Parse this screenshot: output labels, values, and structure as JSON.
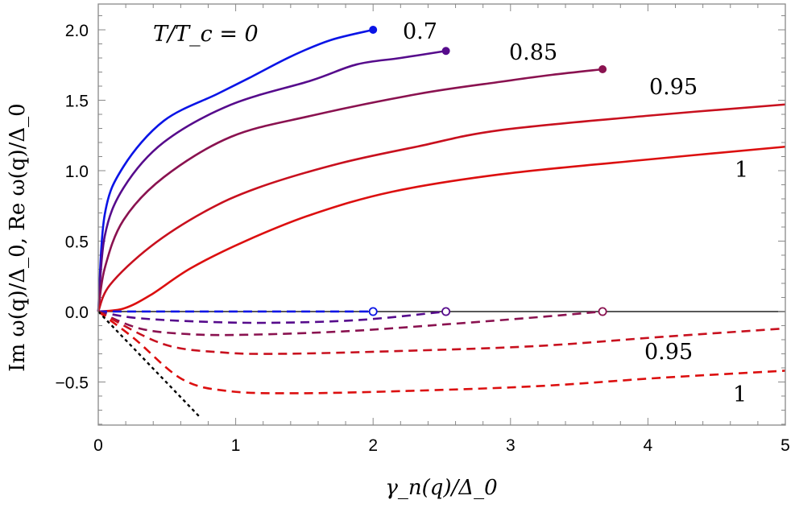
{
  "chart_data": {
    "type": "line",
    "xlabel": "γ_n(q)/Δ_0",
    "ylabel": "Im ω(q)/Δ_0,   Re ω(q)/Δ_0",
    "xlim": [
      0,
      5
    ],
    "ylim": [
      -0.806,
      2.183
    ],
    "x_ticks": [
      "0",
      "1",
      "2",
      "3",
      "4",
      "5"
    ],
    "y_ticks": [
      "2.0",
      "1.5",
      "1.0",
      "0.5",
      "0.0",
      "−0.5"
    ],
    "grid": false,
    "annotations": [
      {
        "text": "T/T_c = 0",
        "near": "Re T=0"
      },
      {
        "text": "0.7",
        "near": "Re T=0.7"
      },
      {
        "text": "0.85",
        "near": "Re T=0.85"
      },
      {
        "text": "0.95",
        "near": "Re T=0.95"
      },
      {
        "text": "1",
        "near": "Re T=1"
      },
      {
        "text": "0.95",
        "near": "Im T=0.95"
      },
      {
        "text": "1",
        "near": "Im T=1"
      }
    ],
    "series": [
      {
        "T": "0",
        "part": "Re",
        "style": "solid",
        "color": "#0a14e6",
        "end_marker": "filled",
        "points": [
          [
            0,
            0
          ],
          [
            0.047,
            0.688
          ],
          [
            0.184,
            1.03
          ],
          [
            0.477,
            1.354
          ],
          [
            0.867,
            1.545
          ],
          [
            1.1,
            1.659
          ],
          [
            1.4,
            1.81
          ],
          [
            1.688,
            1.926
          ],
          [
            2.0,
            2.0
          ]
        ]
      },
      {
        "T": "0.7",
        "part": "Re",
        "style": "solid",
        "color": "#560b8c",
        "end_marker": "filled",
        "points": [
          [
            0,
            0
          ],
          [
            0.047,
            0.535
          ],
          [
            0.184,
            0.878
          ],
          [
            0.477,
            1.202
          ],
          [
            0.965,
            1.468
          ],
          [
            1.55,
            1.64
          ],
          [
            1.88,
            1.754
          ],
          [
            2.2,
            1.8
          ],
          [
            2.53,
            1.85
          ]
        ]
      },
      {
        "T": "0.85",
        "part": "Re",
        "style": "solid",
        "color": "#8a1250",
        "end_marker": "filled",
        "points": [
          [
            0,
            0
          ],
          [
            0.047,
            0.307
          ],
          [
            0.184,
            0.65
          ],
          [
            0.477,
            0.954
          ],
          [
            0.965,
            1.24
          ],
          [
            1.55,
            1.39
          ],
          [
            2.33,
            1.545
          ],
          [
            2.92,
            1.63
          ],
          [
            3.3,
            1.68
          ],
          [
            3.67,
            1.72
          ]
        ]
      },
      {
        "T": "0.95",
        "part": "Re",
        "style": "solid",
        "color": "#c8101e",
        "end_marker": "none",
        "points": [
          [
            0,
            0
          ],
          [
            0.086,
            0.19
          ],
          [
            0.379,
            0.46
          ],
          [
            0.77,
            0.707
          ],
          [
            1.16,
            0.878
          ],
          [
            1.75,
            1.05
          ],
          [
            2.33,
            1.173
          ],
          [
            2.92,
            1.287
          ],
          [
            4.0,
            1.39
          ],
          [
            5.0,
            1.47
          ]
        ]
      },
      {
        "T": "1",
        "part": "Re",
        "style": "solid",
        "color": "#dc0f0f",
        "end_marker": "none",
        "points": [
          [
            0,
            0
          ],
          [
            0.184,
            0.021
          ],
          [
            0.379,
            0.116
          ],
          [
            0.672,
            0.307
          ],
          [
            1.063,
            0.497
          ],
          [
            1.551,
            0.688
          ],
          [
            2.137,
            0.85
          ],
          [
            2.92,
            0.973
          ],
          [
            3.9,
            1.07
          ],
          [
            5.0,
            1.17
          ]
        ]
      },
      {
        "T": "0",
        "part": "Im",
        "style": "dashed",
        "color": "#0a14e6",
        "end_marker": "open",
        "points": [
          [
            0,
            0
          ],
          [
            1.0,
            0
          ],
          [
            2.0,
            0
          ]
        ]
      },
      {
        "T": "0.7",
        "part": "Im",
        "style": "dashed",
        "color": "#560b8c",
        "end_marker": "open",
        "points": [
          [
            0,
            0
          ],
          [
            0.26,
            -0.044
          ],
          [
            0.7,
            -0.07
          ],
          [
            1.24,
            -0.08
          ],
          [
            1.9,
            -0.06
          ],
          [
            2.53,
            0
          ]
        ]
      },
      {
        "T": "0.85",
        "part": "Im",
        "style": "dashed",
        "color": "#8a1250",
        "end_marker": "open",
        "points": [
          [
            0,
            0
          ],
          [
            0.3,
            -0.12
          ],
          [
            0.65,
            -0.16
          ],
          [
            1.07,
            -0.165
          ],
          [
            1.8,
            -0.14
          ],
          [
            2.54,
            -0.09
          ],
          [
            3.2,
            -0.04
          ],
          [
            3.67,
            0
          ]
        ]
      },
      {
        "T": "0.95",
        "part": "Im",
        "style": "dashed",
        "color": "#c8101e",
        "end_marker": "none",
        "points": [
          [
            0,
            0
          ],
          [
            0.47,
            -0.23
          ],
          [
            0.9,
            -0.29
          ],
          [
            1.33,
            -0.3
          ],
          [
            2.2,
            -0.28
          ],
          [
            3.19,
            -0.245
          ],
          [
            4.1,
            -0.18
          ],
          [
            5.0,
            -0.12
          ]
        ]
      },
      {
        "T": "1",
        "part": "Im",
        "style": "dashed",
        "color": "#dc0f0f",
        "end_marker": "none",
        "points": [
          [
            0,
            0
          ],
          [
            0.26,
            -0.19
          ],
          [
            0.61,
            -0.48
          ],
          [
            0.95,
            -0.565
          ],
          [
            1.45,
            -0.58
          ],
          [
            2.2,
            -0.565
          ],
          [
            3.19,
            -0.53
          ],
          [
            4.1,
            -0.47
          ],
          [
            5.0,
            -0.42
          ]
        ]
      },
      {
        "T": "",
        "part": "asymptote",
        "style": "dotted",
        "color": "#000000",
        "end_marker": "none",
        "points": [
          [
            0,
            0
          ],
          [
            0.74,
            -0.75
          ]
        ]
      }
    ]
  }
}
